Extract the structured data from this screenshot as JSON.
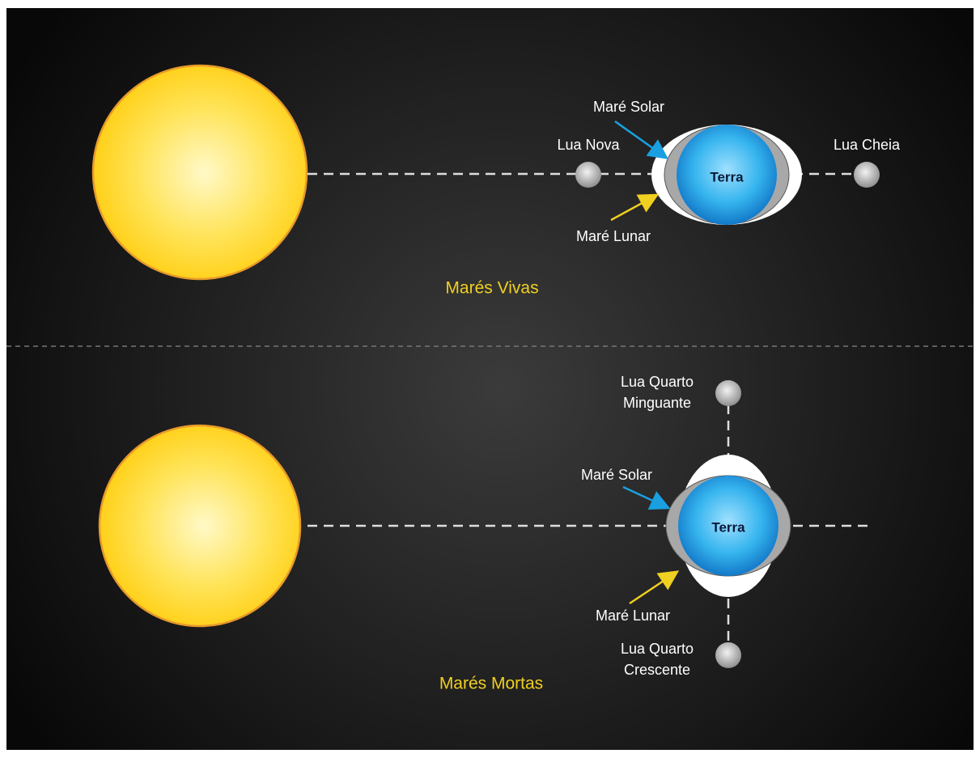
{
  "top": {
    "sun_label": null,
    "solar_tide": "Maré Solar",
    "new_moon": "Lua Nova",
    "full_moon": "Lua Cheia",
    "earth": "Terra",
    "lunar_tide": "Maré Lunar",
    "caption": "Marés Vivas"
  },
  "bottom": {
    "last_quarter": [
      "Lua Quarto",
      "Minguante"
    ],
    "solar_tide": "Maré Solar",
    "earth": "Terra",
    "lunar_tide": "Maré Lunar",
    "first_quarter": [
      "Lua Quarto",
      "Crescente"
    ],
    "caption": "Marés Mortas"
  }
}
